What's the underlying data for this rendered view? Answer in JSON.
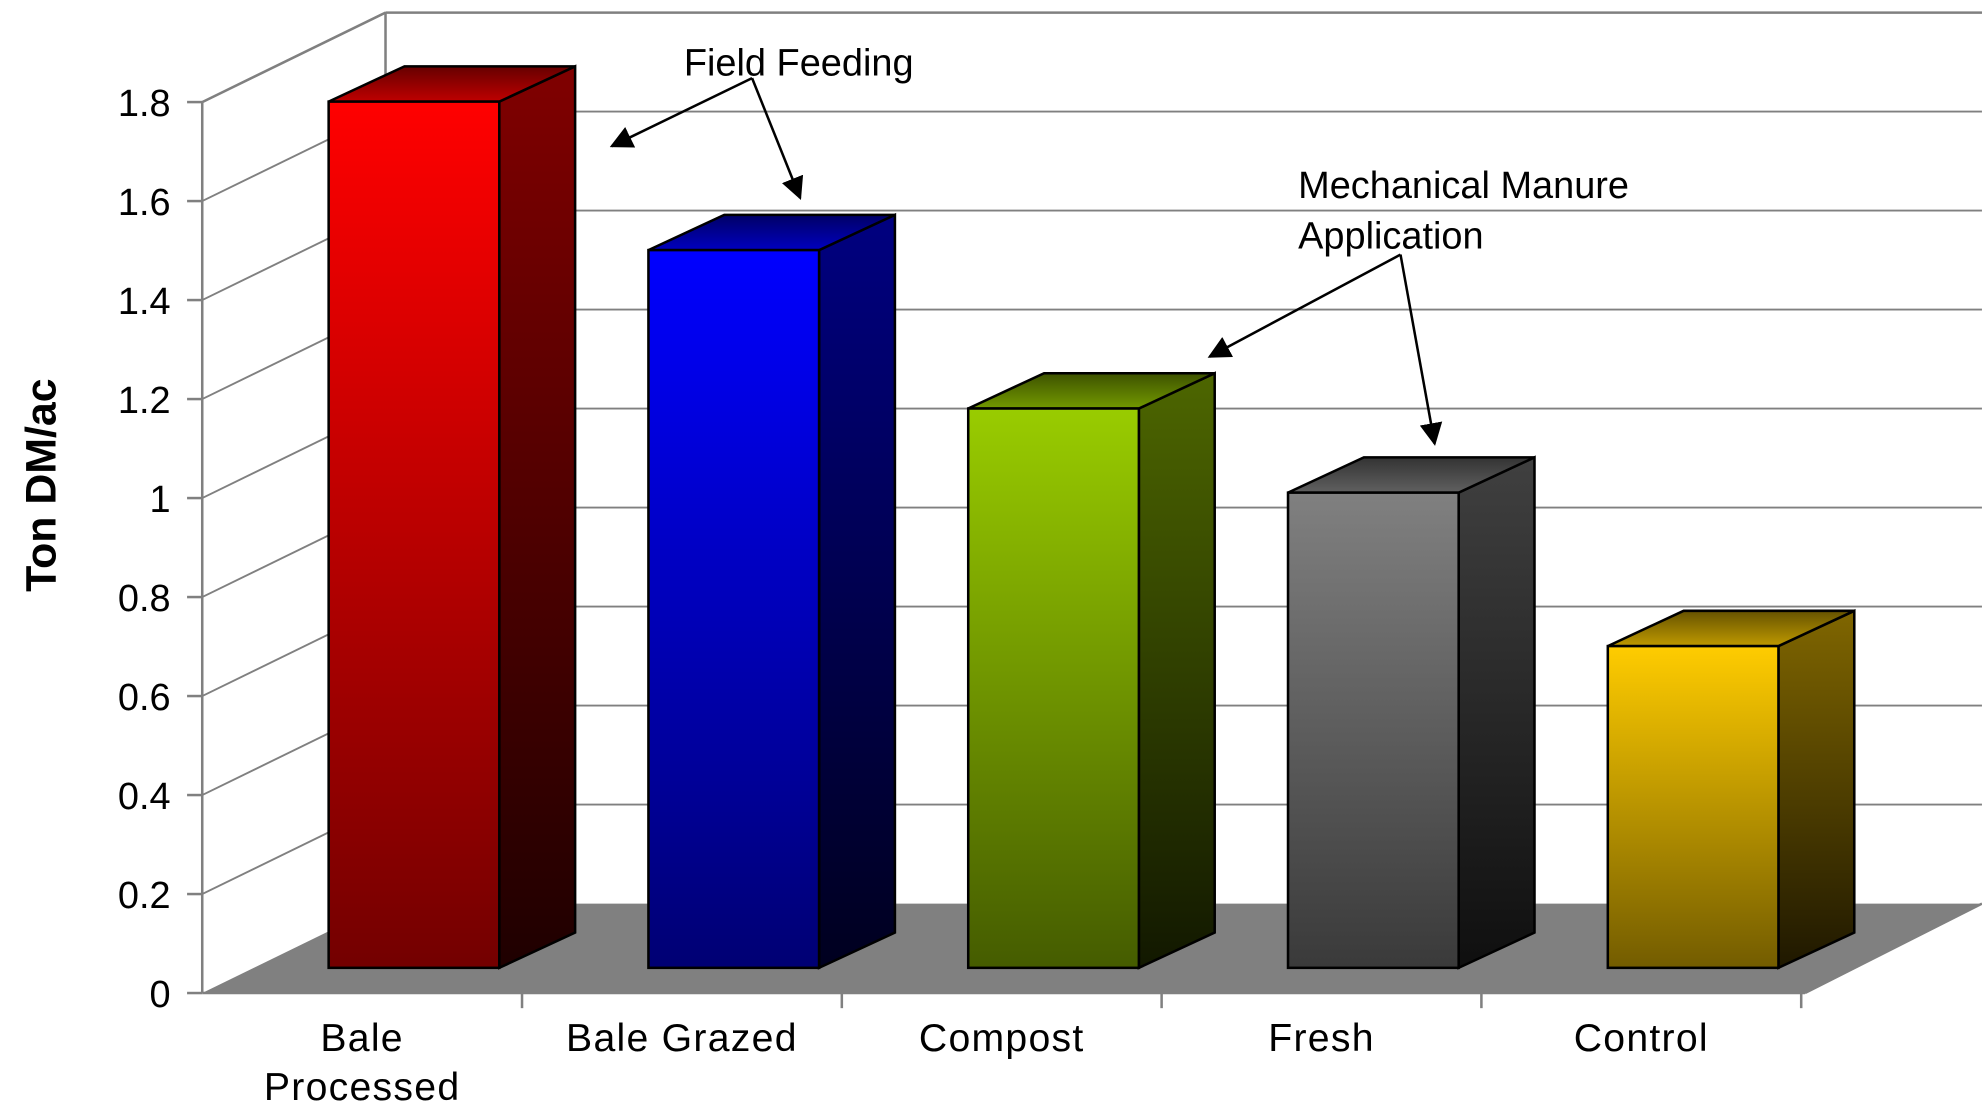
{
  "chart_data": {
    "type": "bar3d",
    "y_label": "Ton DM/ac",
    "annotations": [
      "Field Feeding",
      "Mechanical Manure",
      "Application"
    ],
    "categories": [
      "Bale Processed",
      "Bale Grazed",
      "Compost",
      "Fresh",
      "Control"
    ],
    "values": [
      1.75,
      1.45,
      1.13,
      0.96,
      0.65
    ],
    "colors": [
      "#ff0000",
      "#0000ff",
      "#99cc00",
      "#808080",
      "#ffcc00"
    ],
    "ylim": [
      0,
      1.8
    ],
    "yticks": [
      0,
      0.2,
      0.4,
      0.6,
      0.8,
      1,
      1.2,
      1.4,
      1.6,
      1.8
    ],
    "grid": true
  }
}
